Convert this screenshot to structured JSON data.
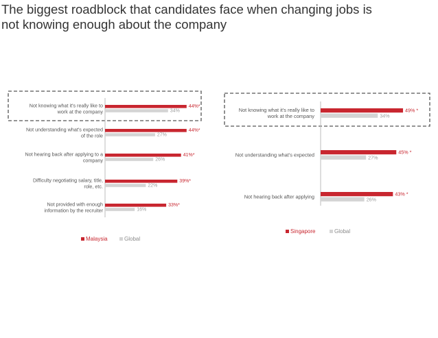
{
  "title": {
    "line1": "The biggest roadblock that candidates face when changing jobs is",
    "line2": "not knowing enough about the company"
  },
  "colors": {
    "primary": "#c8262f",
    "global": "#d4d4d4",
    "text": "#555555",
    "title": "#333333",
    "dash": "#555555"
  },
  "chart_data": [
    {
      "type": "bar",
      "orientation": "horizontal",
      "title": "",
      "categories": [
        [
          "Not knowing what it's really like to",
          "work at the company"
        ],
        [
          "Not understanding what's expected",
          "of the role"
        ],
        [
          "Not hearing back after applying to a",
          "company"
        ],
        [
          "Difficulty negotiating salary, title,",
          "role, etc."
        ],
        [
          "Not provided with enough",
          "information by the recruiter"
        ]
      ],
      "series": [
        {
          "name": "Malaysia",
          "values": [
            44,
            44,
            41,
            39,
            33
          ],
          "labels": [
            "44%*",
            "44%*",
            "41%*",
            "39%*",
            "33%*"
          ]
        },
        {
          "name": "Global",
          "values": [
            34,
            27,
            26,
            22,
            16
          ],
          "labels": [
            "34%",
            "27%",
            "26%",
            "22%",
            "16%"
          ]
        }
      ],
      "highlighted_category": 0,
      "xlim": [
        0,
        50
      ],
      "legend": "bottom"
    },
    {
      "type": "bar",
      "orientation": "horizontal",
      "title": "",
      "categories": [
        [
          "Not knowing what it's really like to",
          "work at the company"
        ],
        [
          "Not understanding what's expected"
        ],
        [
          "Not hearing back after applying"
        ]
      ],
      "series": [
        {
          "name": "Singapore",
          "values": [
            49,
            45,
            43
          ],
          "labels": [
            "49% *",
            "45% *",
            "43% *"
          ]
        },
        {
          "name": "Global",
          "values": [
            34,
            27,
            26
          ],
          "labels": [
            "34%",
            "27%",
            "26%"
          ]
        }
      ],
      "highlighted_category": 0,
      "xlim": [
        0,
        50
      ],
      "legend": "bottom"
    }
  ]
}
